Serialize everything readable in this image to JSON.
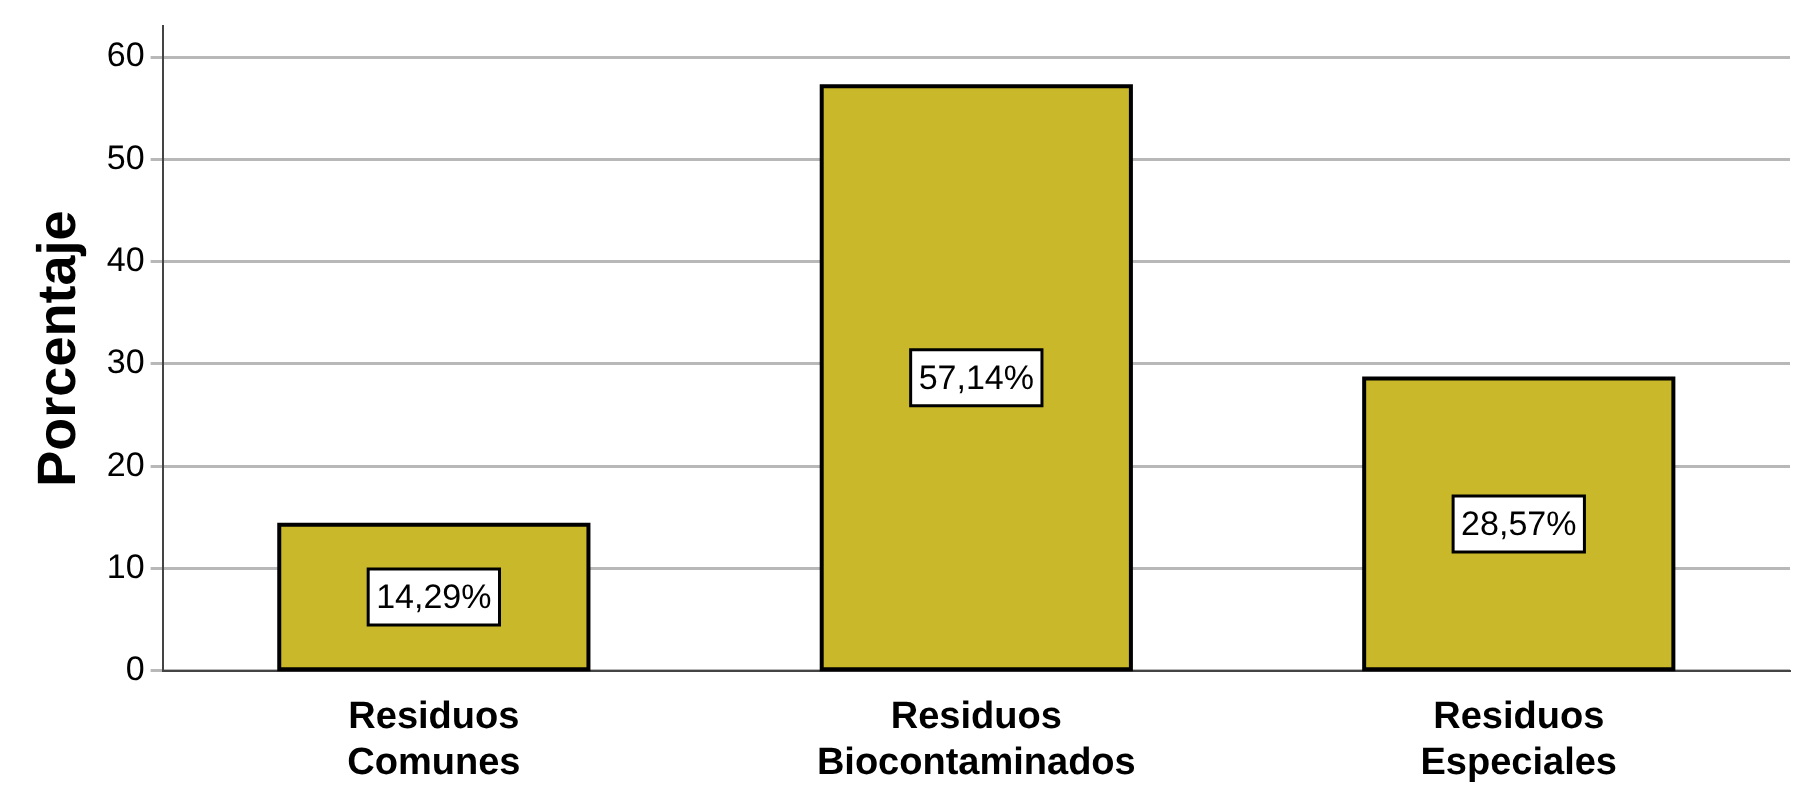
{
  "chart_data": {
    "type": "bar",
    "ylabel": "Porcentaje",
    "categories": [
      "Residuos Comunes",
      "Residuos Biocontaminados",
      "Residuos Especiales"
    ],
    "values": [
      14.29,
      57.14,
      28.57
    ],
    "color": "#c8b82a",
    "value_labels": [
      "14,29%",
      "57,14%",
      "28,57%"
    ],
    "ylim": [
      0,
      63
    ],
    "yticks": [
      0,
      10,
      20,
      30,
      40,
      50,
      60
    ],
    "grid": "y"
  }
}
